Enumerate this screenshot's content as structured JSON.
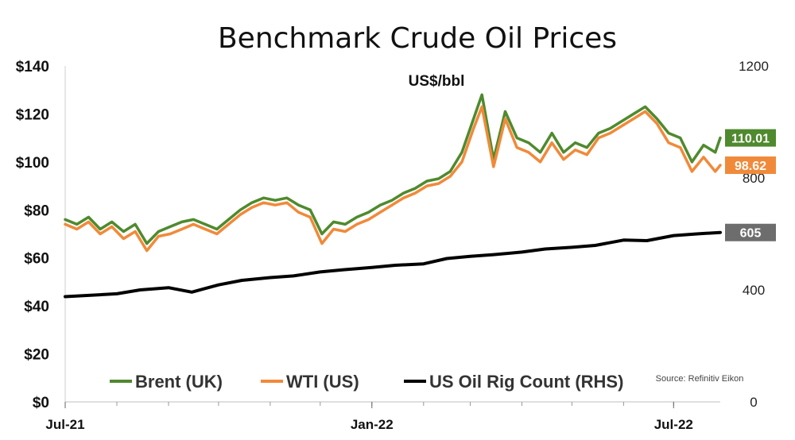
{
  "chart_data": {
    "type": "line",
    "title": "Benchmark Crude Oil Prices",
    "unit_label": "US$/bbl",
    "source": "Source: Refinitiv Eikon",
    "x_range": [
      "2021-07-01",
      "2022-07-29"
    ],
    "x_ticks": [
      {
        "date": "2021-07-01",
        "label": "Jul-21"
      },
      {
        "date": "2022-01-01",
        "label": "Jan-22"
      },
      {
        "date": "2022-07-01",
        "label": "Jul-22"
      }
    ],
    "y_left": {
      "min": 0,
      "max": 140,
      "ticks": [
        0,
        20,
        40,
        60,
        80,
        100,
        120,
        140
      ],
      "tick_labels": [
        "$0",
        "$20",
        "$40",
        "$60",
        "$80",
        "$100",
        "$120",
        "$140"
      ]
    },
    "y_right": {
      "min": 0,
      "max": 1200,
      "ticks": [
        0,
        400,
        800,
        1200
      ],
      "tick_labels": [
        "0",
        "400",
        "800",
        "1200"
      ]
    },
    "grid": false,
    "legend_position": "bottom",
    "series": [
      {
        "name": "Brent (UK)",
        "color": "#4f8a2e",
        "axis": "left",
        "end_label": "110.01",
        "x": [
          "2021-07-01",
          "2021-07-08",
          "2021-07-15",
          "2021-07-22",
          "2021-07-29",
          "2021-08-05",
          "2021-08-12",
          "2021-08-19",
          "2021-08-26",
          "2021-09-02",
          "2021-09-09",
          "2021-09-16",
          "2021-09-23",
          "2021-09-30",
          "2021-10-07",
          "2021-10-14",
          "2021-10-21",
          "2021-10-28",
          "2021-11-04",
          "2021-11-11",
          "2021-11-18",
          "2021-11-25",
          "2021-12-02",
          "2021-12-09",
          "2021-12-16",
          "2021-12-23",
          "2021-12-30",
          "2022-01-06",
          "2022-01-13",
          "2022-01-20",
          "2022-01-27",
          "2022-02-03",
          "2022-02-10",
          "2022-02-17",
          "2022-02-24",
          "2022-03-03",
          "2022-03-08",
          "2022-03-15",
          "2022-03-22",
          "2022-03-29",
          "2022-04-05",
          "2022-04-12",
          "2022-04-19",
          "2022-04-26",
          "2022-05-03",
          "2022-05-10",
          "2022-05-17",
          "2022-05-24",
          "2022-05-31",
          "2022-06-07",
          "2022-06-14",
          "2022-06-21",
          "2022-06-28",
          "2022-07-05",
          "2022-07-12",
          "2022-07-19",
          "2022-07-26",
          "2022-07-29"
        ],
        "values": [
          76,
          74,
          77,
          72,
          75,
          71,
          74,
          66,
          71,
          73,
          75,
          76,
          74,
          72,
          76,
          80,
          83,
          85,
          84,
          85,
          82,
          80,
          70,
          75,
          74,
          77,
          79,
          82,
          84,
          87,
          89,
          92,
          93,
          96,
          104,
          118,
          128,
          101,
          121,
          110,
          108,
          104,
          112,
          104,
          108,
          106,
          112,
          114,
          117,
          120,
          123,
          118,
          112,
          110,
          100,
          107,
          104,
          110.01
        ]
      },
      {
        "name": "WTI (US)",
        "color": "#f08a3a",
        "axis": "left",
        "end_label": "98.62",
        "x": [
          "2021-07-01",
          "2021-07-08",
          "2021-07-15",
          "2021-07-22",
          "2021-07-29",
          "2021-08-05",
          "2021-08-12",
          "2021-08-19",
          "2021-08-26",
          "2021-09-02",
          "2021-09-09",
          "2021-09-16",
          "2021-09-23",
          "2021-09-30",
          "2021-10-07",
          "2021-10-14",
          "2021-10-21",
          "2021-10-28",
          "2021-11-04",
          "2021-11-11",
          "2021-11-18",
          "2021-11-25",
          "2021-12-02",
          "2021-12-09",
          "2021-12-16",
          "2021-12-23",
          "2021-12-30",
          "2022-01-06",
          "2022-01-13",
          "2022-01-20",
          "2022-01-27",
          "2022-02-03",
          "2022-02-10",
          "2022-02-17",
          "2022-02-24",
          "2022-03-03",
          "2022-03-08",
          "2022-03-15",
          "2022-03-22",
          "2022-03-29",
          "2022-04-05",
          "2022-04-12",
          "2022-04-19",
          "2022-04-26",
          "2022-05-03",
          "2022-05-10",
          "2022-05-17",
          "2022-05-24",
          "2022-05-31",
          "2022-06-07",
          "2022-06-14",
          "2022-06-21",
          "2022-06-28",
          "2022-07-05",
          "2022-07-12",
          "2022-07-19",
          "2022-07-26",
          "2022-07-29"
        ],
        "values": [
          74,
          72,
          75,
          70,
          73,
          68,
          71,
          63,
          69,
          70,
          72,
          74,
          72,
          70,
          74,
          78,
          81,
          83,
          82,
          83,
          79,
          77,
          66,
          72,
          71,
          74,
          76,
          79,
          82,
          85,
          87,
          90,
          91,
          94,
          100,
          114,
          123,
          98,
          118,
          106,
          104,
          100,
          108,
          101,
          105,
          103,
          110,
          112,
          115,
          118,
          121,
          116,
          108,
          106,
          96,
          102,
          96,
          98.62
        ]
      },
      {
        "name": "US Oil Rig Count (RHS)",
        "color": "#000000",
        "axis": "right",
        "end_label": "605",
        "x": [
          "2021-07-01",
          "2021-08-01",
          "2021-08-15",
          "2021-09-01",
          "2021-09-15",
          "2021-10-01",
          "2021-10-15",
          "2021-11-01",
          "2021-11-15",
          "2021-12-01",
          "2021-12-15",
          "2022-01-01",
          "2022-01-15",
          "2022-02-01",
          "2022-02-15",
          "2022-03-01",
          "2022-03-15",
          "2022-04-01",
          "2022-04-15",
          "2022-05-01",
          "2022-05-15",
          "2022-06-01",
          "2022-06-15",
          "2022-07-01",
          "2022-07-15",
          "2022-07-29"
        ],
        "values": [
          376,
          386,
          400,
          408,
          392,
          418,
          434,
          444,
          450,
          464,
          472,
          480,
          488,
          493,
          512,
          520,
          526,
          535,
          546,
          552,
          559,
          578,
          576,
          594,
          600,
          605
        ]
      }
    ]
  }
}
